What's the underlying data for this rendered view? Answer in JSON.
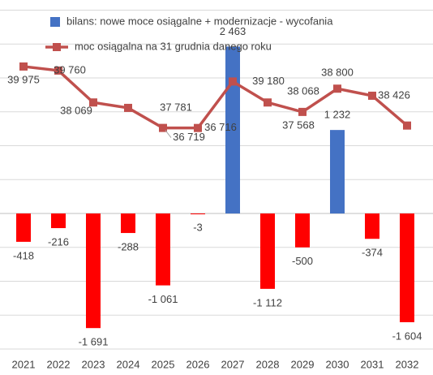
{
  "chart_data": {
    "type": "bar-line",
    "categories": [
      "2021",
      "2022",
      "2023",
      "2024",
      "2025",
      "2026",
      "2027",
      "2028",
      "2029",
      "2030",
      "2031",
      "2032"
    ],
    "ylim": [
      -2000,
      3150
    ],
    "yticks": [
      -2000,
      -1500,
      -1000,
      -500,
      0,
      500,
      1000,
      1500,
      2000,
      2500,
      3000
    ],
    "y2lim": [
      25000,
      43500
    ],
    "grid": true,
    "series": [
      {
        "name": "bilans: nowe moce osiągalne + modernizacje - wycofania",
        "color": "#4472c4",
        "negative_color": "#ff0000",
        "values": [
          -418,
          -216,
          -1691,
          -288,
          -1061,
          -3,
          2463,
          -1112,
          -500,
          1232,
          -374,
          -1604
        ],
        "value_labels": [
          "-418",
          "-216",
          "-1 691",
          "-288",
          "-1 061",
          "-3",
          "2 463",
          "-1 112",
          "-500",
          "1 232",
          "-374",
          "-1 604"
        ]
      },
      {
        "name": "moc osiągalna na 31 grudnia danego roku",
        "color": "#c0504d",
        "axis": "y2",
        "values": [
          39975,
          39760,
          38069,
          37781,
          36719,
          36716,
          39180,
          38068,
          37568,
          38800,
          38426,
          36845
        ],
        "value_labels": [
          "39 975",
          "39 760",
          "38 069",
          "37 781",
          "36 719",
          "36 716",
          "39 180",
          "38 068",
          "37 568",
          "38 800",
          "38 426",
          null
        ]
      }
    ]
  }
}
